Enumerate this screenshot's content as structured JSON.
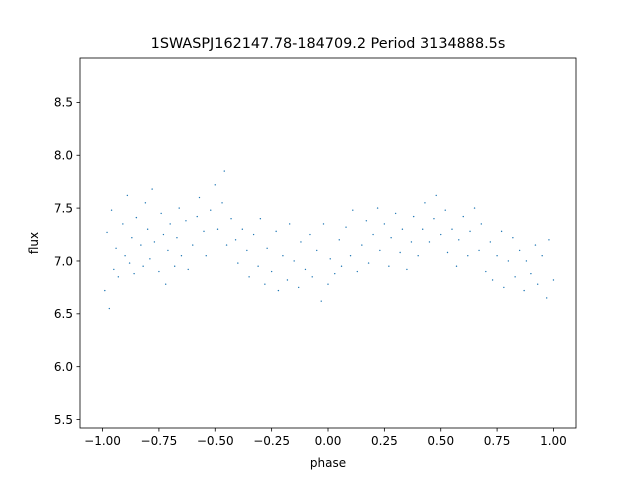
{
  "chart_data": {
    "type": "scatter",
    "title": "1SWASPJ162147.78-184709.2 Period 3134888.5s",
    "xlabel": "phase",
    "ylabel": "flux",
    "xlim": [
      -1.1,
      1.1
    ],
    "ylim": [
      5.42,
      8.92
    ],
    "xticks": [
      -1.0,
      -0.75,
      -0.5,
      -0.25,
      0.0,
      0.25,
      0.5,
      0.75,
      1.0
    ],
    "xtick_labels": [
      "−1.00",
      "−0.75",
      "−0.50",
      "−0.25",
      "0.00",
      "0.25",
      "0.50",
      "0.75",
      "1.00"
    ],
    "yticks": [
      5.5,
      6.0,
      6.5,
      7.0,
      7.5,
      8.0,
      8.5
    ],
    "ytick_labels": [
      "5.5",
      "6.0",
      "6.5",
      "7.0",
      "7.5",
      "8.0",
      "8.5"
    ],
    "grid": false,
    "legend": "none",
    "series": [
      {
        "color": "#1f77b4",
        "marker_size": 0.7,
        "points": [
          [
            -0.99,
            6.72
          ],
          [
            -0.98,
            7.27
          ],
          [
            -0.97,
            6.55
          ],
          [
            -0.96,
            7.48
          ],
          [
            -0.95,
            6.92
          ],
          [
            -0.94,
            7.12
          ],
          [
            -0.93,
            6.85
          ],
          [
            -0.91,
            7.35
          ],
          [
            -0.9,
            7.05
          ],
          [
            -0.89,
            7.62
          ],
          [
            -0.88,
            6.98
          ],
          [
            -0.87,
            7.22
          ],
          [
            -0.86,
            6.88
          ],
          [
            -0.85,
            7.41
          ],
          [
            -0.83,
            7.15
          ],
          [
            -0.82,
            6.95
          ],
          [
            -0.81,
            7.55
          ],
          [
            -0.8,
            7.3
          ],
          [
            -0.79,
            7.02
          ],
          [
            -0.78,
            7.68
          ],
          [
            -0.77,
            7.18
          ],
          [
            -0.75,
            6.9
          ],
          [
            -0.74,
            7.45
          ],
          [
            -0.73,
            7.25
          ],
          [
            -0.72,
            6.78
          ],
          [
            -0.71,
            7.1
          ],
          [
            -0.7,
            7.35
          ],
          [
            -0.68,
            6.95
          ],
          [
            -0.67,
            7.22
          ],
          [
            -0.66,
            7.5
          ],
          [
            -0.65,
            7.05
          ],
          [
            -0.63,
            7.38
          ],
          [
            -0.62,
            6.92
          ],
          [
            -0.6,
            7.15
          ],
          [
            -0.58,
            7.42
          ],
          [
            -0.57,
            7.6
          ],
          [
            -0.55,
            7.28
          ],
          [
            -0.54,
            7.05
          ],
          [
            -0.52,
            7.48
          ],
          [
            -0.5,
            7.72
          ],
          [
            -0.49,
            7.3
          ],
          [
            -0.47,
            7.55
          ],
          [
            -0.46,
            7.85
          ],
          [
            -0.45,
            7.15
          ],
          [
            -0.43,
            7.4
          ],
          [
            -0.41,
            7.2
          ],
          [
            -0.4,
            6.98
          ],
          [
            -0.38,
            7.3
          ],
          [
            -0.36,
            7.1
          ],
          [
            -0.35,
            6.85
          ],
          [
            -0.33,
            7.25
          ],
          [
            -0.31,
            6.95
          ],
          [
            -0.3,
            7.4
          ],
          [
            -0.28,
            6.78
          ],
          [
            -0.27,
            7.12
          ],
          [
            -0.25,
            6.9
          ],
          [
            -0.23,
            7.28
          ],
          [
            -0.22,
            6.72
          ],
          [
            -0.2,
            7.05
          ],
          [
            -0.18,
            6.82
          ],
          [
            -0.17,
            7.35
          ],
          [
            -0.15,
            7.0
          ],
          [
            -0.13,
            6.75
          ],
          [
            -0.12,
            7.18
          ],
          [
            -0.1,
            6.92
          ],
          [
            -0.08,
            7.25
          ],
          [
            -0.07,
            6.85
          ],
          [
            -0.05,
            7.1
          ],
          [
            -0.03,
            6.62
          ],
          [
            -0.02,
            7.35
          ],
          [
            0.0,
            6.78
          ],
          [
            0.01,
            7.02
          ],
          [
            0.03,
            6.88
          ],
          [
            0.05,
            7.2
          ],
          [
            0.06,
            6.95
          ],
          [
            0.08,
            7.32
          ],
          [
            0.1,
            7.05
          ],
          [
            0.11,
            7.48
          ],
          [
            0.13,
            6.9
          ],
          [
            0.15,
            7.15
          ],
          [
            0.17,
            7.38
          ],
          [
            0.18,
            6.98
          ],
          [
            0.2,
            7.25
          ],
          [
            0.22,
            7.5
          ],
          [
            0.23,
            7.1
          ],
          [
            0.25,
            7.35
          ],
          [
            0.27,
            6.95
          ],
          [
            0.28,
            7.22
          ],
          [
            0.3,
            7.45
          ],
          [
            0.32,
            7.08
          ],
          [
            0.33,
            7.3
          ],
          [
            0.35,
            6.92
          ],
          [
            0.37,
            7.18
          ],
          [
            0.38,
            7.42
          ],
          [
            0.4,
            7.05
          ],
          [
            0.42,
            7.3
          ],
          [
            0.43,
            7.55
          ],
          [
            0.45,
            7.18
          ],
          [
            0.47,
            7.4
          ],
          [
            0.48,
            7.62
          ],
          [
            0.5,
            7.25
          ],
          [
            0.52,
            7.48
          ],
          [
            0.53,
            7.08
          ],
          [
            0.55,
            7.3
          ],
          [
            0.57,
            6.95
          ],
          [
            0.58,
            7.2
          ],
          [
            0.6,
            7.42
          ],
          [
            0.62,
            7.05
          ],
          [
            0.63,
            7.28
          ],
          [
            0.65,
            7.5
          ],
          [
            0.67,
            7.1
          ],
          [
            0.68,
            7.35
          ],
          [
            0.7,
            6.9
          ],
          [
            0.72,
            7.18
          ],
          [
            0.73,
            6.82
          ],
          [
            0.75,
            7.05
          ],
          [
            0.77,
            7.28
          ],
          [
            0.78,
            6.75
          ],
          [
            0.8,
            7.0
          ],
          [
            0.82,
            7.22
          ],
          [
            0.83,
            6.85
          ],
          [
            0.85,
            7.1
          ],
          [
            0.87,
            6.72
          ],
          [
            0.88,
            7.0
          ],
          [
            0.9,
            6.88
          ],
          [
            0.92,
            7.15
          ],
          [
            0.93,
            6.78
          ],
          [
            0.95,
            7.05
          ],
          [
            0.97,
            6.65
          ],
          [
            0.98,
            7.2
          ],
          [
            1.0,
            6.82
          ]
        ]
      }
    ]
  }
}
